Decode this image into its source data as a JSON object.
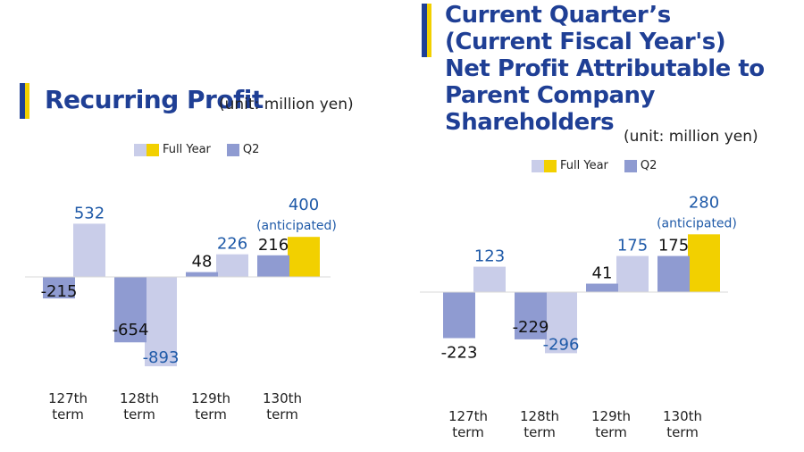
{
  "chart_data": [
    {
      "type": "bar",
      "title": "Recurring Profit",
      "unit": "(unit: million yen)",
      "categories": [
        "127th term",
        "128th term",
        "129th term",
        "130th term"
      ],
      "legend": {
        "full_year": "Full Year",
        "q2": "Q2"
      },
      "series": [
        {
          "name": "Q2",
          "values": [
            -215,
            -654,
            48,
            216
          ]
        },
        {
          "name": "Full Year",
          "values": [
            532,
            -893,
            226,
            400
          ]
        }
      ],
      "annotation": "(anticipated)",
      "ylim": [
        -893,
        532
      ],
      "colors": {
        "q2": "#8f9bd1",
        "full_year": "#c9cde9",
        "anticipated": "#f2d000",
        "value_label": "#1f5aa8"
      }
    },
    {
      "type": "bar",
      "title": "Current Quarter’s\n(Current Fiscal Year's)\nNet Profit Attributable to\nParent Company Shareholders",
      "unit": "(unit: million yen)",
      "categories": [
        "127th term",
        "128th term",
        "129th term",
        "130th term"
      ],
      "legend": {
        "full_year": "Full Year",
        "q2": "Q2"
      },
      "series": [
        {
          "name": "Q2",
          "values": [
            -223,
            -229,
            41,
            175
          ]
        },
        {
          "name": "Full Year",
          "values": [
            123,
            -296,
            175,
            280
          ]
        }
      ],
      "annotation": "(anticipated)",
      "ylim": [
        -296,
        280
      ],
      "colors": {
        "q2": "#8f9bd1",
        "full_year": "#c9cde9",
        "anticipated": "#f2d000",
        "value_label": "#1f5aa8"
      }
    }
  ]
}
